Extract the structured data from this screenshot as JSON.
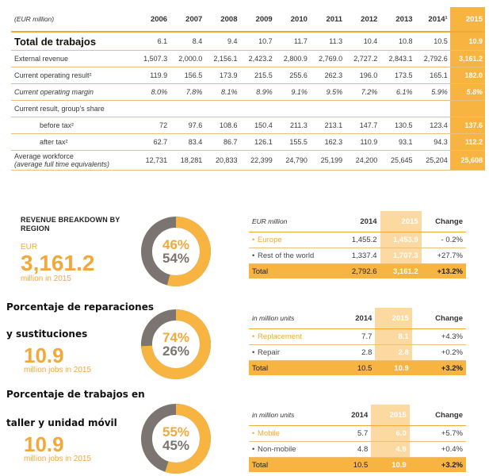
{
  "top_table": {
    "unit_label": "(EUR million)",
    "years": [
      "2006",
      "2007",
      "2008",
      "2009",
      "2010",
      "2011",
      "2012",
      "2013",
      "2014¹",
      "2015"
    ],
    "rows": [
      {
        "label": "Total de trabajos",
        "values": [
          "6.1",
          "8.4",
          "9.4",
          "10.7",
          "11.7",
          "11.3",
          "10.4",
          "10.8",
          "10.5",
          "10.9"
        ]
      },
      {
        "label": "External revenue",
        "values": [
          "1,507.3",
          "2,000.0",
          "2,156.1",
          "2,423.2",
          "2,800.9",
          "2,769.0",
          "2,727.2",
          "2,843.1",
          "2,792.6",
          "3,161.2"
        ]
      },
      {
        "label": "Current operating result²",
        "values": [
          "119.9",
          "156.5",
          "173.9",
          "215.5",
          "255.6",
          "262.3",
          "196.0",
          "173.5",
          "165.1",
          "182.0"
        ]
      },
      {
        "label": "Current operating margin",
        "values": [
          "8.0%",
          "7.8%",
          "8.1%",
          "8.9%",
          "9.1%",
          "9.5%",
          "7.2%",
          "6.1%",
          "5.9%",
          "5.8%"
        ]
      },
      {
        "label": "Current result, group's share",
        "values": [
          "",
          "",
          "",
          "",
          "",
          "",
          "",
          "",
          "",
          ""
        ]
      },
      {
        "label": "before tax²",
        "values": [
          "72",
          "97.6",
          "108.6",
          "150.4",
          "211.3",
          "213.1",
          "147.7",
          "130.5",
          "123.4",
          "137.6"
        ]
      },
      {
        "label": "after tax²",
        "values": [
          "62.7",
          "83.4",
          "86.7",
          "126.1",
          "155.5",
          "162.3",
          "110.9",
          "93.1",
          "94.3",
          "112.2"
        ]
      },
      {
        "label": "Average workforce",
        "label2": "(average full time equivalents)",
        "values": [
          "12,731",
          "18,281",
          "20,833",
          "22,399",
          "24,790",
          "25,199",
          "24,200",
          "25,645",
          "25,204",
          "25,608"
        ]
      }
    ]
  },
  "region": {
    "title_line1": "REVENUE BREAKDOWN BY",
    "title_line2": "REGION",
    "unit": "EUR",
    "value": "3,161.2",
    "subtext": "million in 2015",
    "donut": {
      "pct_top": "46%",
      "pct_bottom": "54%",
      "fraction_orange": 0.54
    },
    "table": {
      "unit_label": "EUR million",
      "col_2014": "2014",
      "col_2015": "2015",
      "col_change": "Change",
      "rows": [
        {
          "label": "Europe",
          "v2014": "1,455.2",
          "v2015": "1,453.9",
          "change": "- 0.2%"
        },
        {
          "label": "Rest of the world",
          "v2014": "1,337.4",
          "v2015": "1,707.3",
          "change": "+27.7%"
        }
      ],
      "total": {
        "label": "Total",
        "v2014": "2,792.6",
        "v2015": "3,161.2",
        "change": "+13.2%"
      }
    }
  },
  "repairs": {
    "title_line1": "Porcentaje de reparaciones",
    "title_line2": "y sustituciones",
    "value": "10.9",
    "subtext": "million jobs in 2015",
    "donut": {
      "pct_top": "74%",
      "pct_bottom": "26%",
      "fraction_orange": 0.74
    },
    "table": {
      "unit_label": "in million units",
      "col_2014": "2014",
      "col_2015": "2015",
      "col_change": "Change",
      "rows": [
        {
          "label": "Replacement",
          "v2014": "7.7",
          "v2015": "8.1",
          "change": "+4.3%"
        },
        {
          "label": "Repair",
          "v2014": "2.8",
          "v2015": "2.8",
          "change": "+0.2%"
        }
      ],
      "total": {
        "label": "Total",
        "v2014": "10.5",
        "v2015": "10.9",
        "change": "+3.2%"
      }
    }
  },
  "workshop": {
    "title_line1": "Porcentaje de trabajos en",
    "title_line2": "taller y unidad móvil",
    "value": "10.9",
    "subtext": "million jobs in 2015",
    "donut": {
      "pct_top": "55%",
      "pct_bottom": "45%",
      "fraction_orange": 0.55
    },
    "table": {
      "unit_label": "in million units",
      "col_2014": "2014",
      "col_2015": "2015",
      "col_change": "Change",
      "rows": [
        {
          "label": "Mobile",
          "v2014": "5.7",
          "v2015": "6.0",
          "change": "+5.7%"
        },
        {
          "label": "Non-mobile",
          "v2014": "4.8",
          "v2015": "4.9",
          "change": "+0.4%"
        }
      ],
      "total": {
        "label": "Total",
        "v2014": "10.5",
        "v2015": "10.9",
        "change": "+3.2%"
      }
    }
  },
  "colors": {
    "orange": "#f7b441",
    "grey": "#7b7470",
    "light_orange": "#fbd9a0"
  }
}
